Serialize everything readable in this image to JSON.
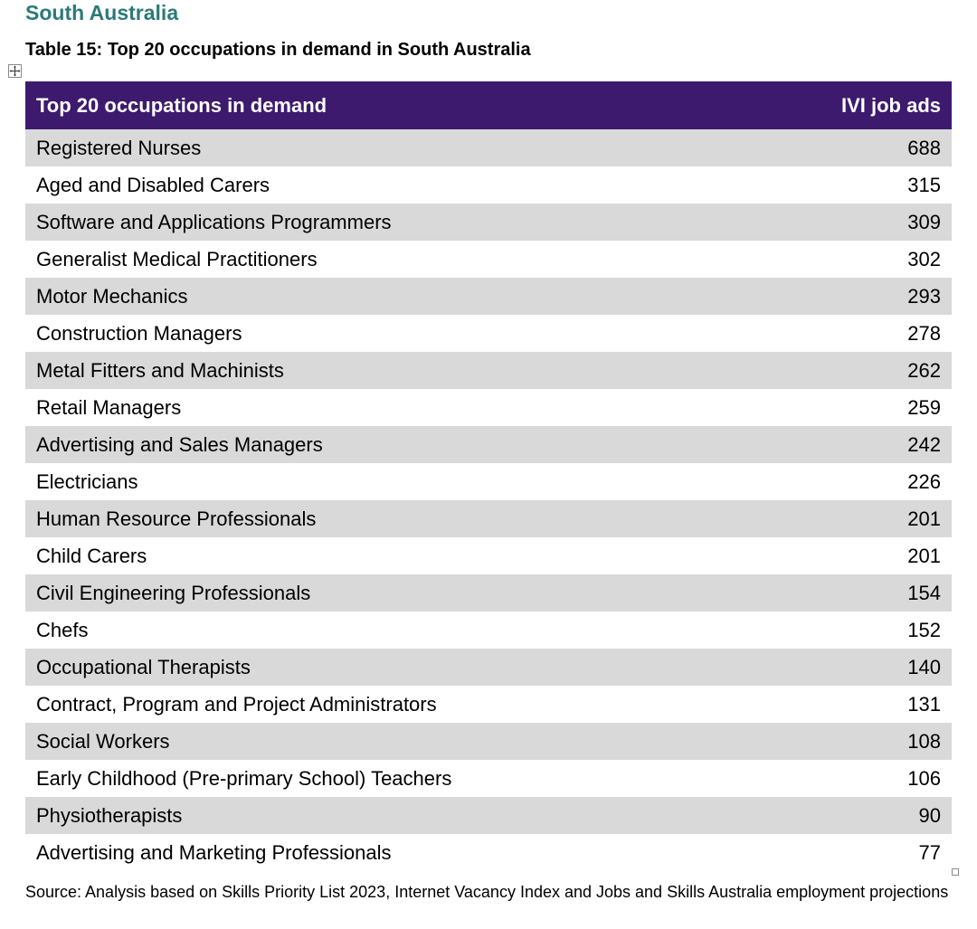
{
  "section_heading": "South Australia",
  "table_caption": "Table 15: Top 20 occupations in demand in South Australia",
  "table": {
    "headers": {
      "occupation": "Top 20 occupations in demand",
      "job_ads": "IVI job ads"
    },
    "rows": [
      {
        "occupation": "Registered Nurses",
        "job_ads": "688"
      },
      {
        "occupation": "Aged and Disabled Carers",
        "job_ads": "315"
      },
      {
        "occupation": "Software and Applications Programmers",
        "job_ads": "309"
      },
      {
        "occupation": "Generalist Medical Practitioners",
        "job_ads": "302"
      },
      {
        "occupation": "Motor Mechanics",
        "job_ads": "293"
      },
      {
        "occupation": "Construction Managers",
        "job_ads": "278"
      },
      {
        "occupation": "Metal Fitters and Machinists",
        "job_ads": "262"
      },
      {
        "occupation": "Retail Managers",
        "job_ads": "259"
      },
      {
        "occupation": "Advertising and Sales Managers",
        "job_ads": "242"
      },
      {
        "occupation": "Electricians",
        "job_ads": "226"
      },
      {
        "occupation": "Human Resource Professionals",
        "job_ads": "201"
      },
      {
        "occupation": "Child Carers",
        "job_ads": "201"
      },
      {
        "occupation": "Civil Engineering Professionals",
        "job_ads": "154"
      },
      {
        "occupation": "Chefs",
        "job_ads": "152"
      },
      {
        "occupation": "Occupational Therapists",
        "job_ads": "140"
      },
      {
        "occupation": "Contract, Program and Project Administrators",
        "job_ads": "131"
      },
      {
        "occupation": "Social Workers",
        "job_ads": "108"
      },
      {
        "occupation": "Early Childhood (Pre-primary School) Teachers",
        "job_ads": "106"
      },
      {
        "occupation": "Physiotherapists",
        "job_ads": "90"
      },
      {
        "occupation": "Advertising and Marketing Professionals",
        "job_ads": "77"
      }
    ]
  },
  "source_note": "Source: Analysis based on Skills Priority List 2023, Internet Vacancy Index and Jobs and Skills Australia employment projections",
  "colors": {
    "heading": "#2b7a78",
    "header_bg": "#3d1a6e",
    "stripe": "#d9d9d9"
  },
  "icons": {
    "table_move_handle": "move-arrows-icon",
    "table_resize_handle": "resize-handle-icon"
  }
}
